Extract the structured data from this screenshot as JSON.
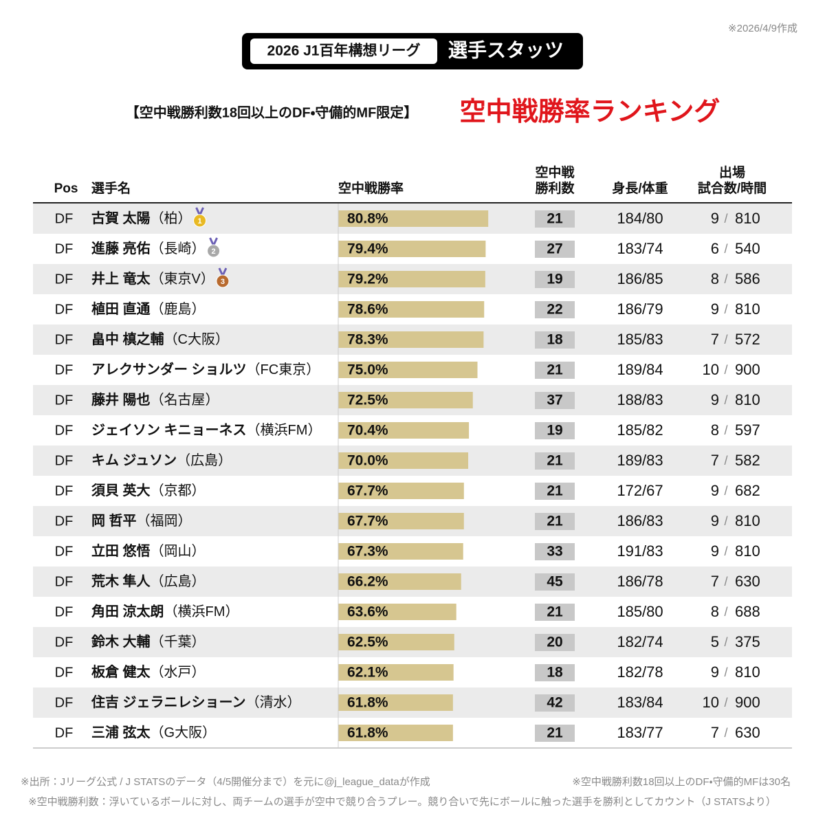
{
  "header": {
    "date_note": "※2026/4/9作成",
    "league": "2026 J1百年構想リーグ",
    "section": "選手スタッツ"
  },
  "subtitle": {
    "condition": "【空中戦勝利数18回以上のDF・守備的MF限定】",
    "title": "空中戦勝率ランキング"
  },
  "table": {
    "columns": {
      "pos": "Pos",
      "name": "選手名",
      "rate": "空中戦勝率",
      "wins": [
        "空中戦",
        "勝利数"
      ],
      "body": "身長/体重",
      "apps": [
        "出場",
        "試合数/時間"
      ]
    },
    "separator": "/",
    "rows": [
      {
        "pos": "DF",
        "name": "古賀 太陽",
        "team": "（柏）",
        "medal": "1",
        "rate": 80.8,
        "rate_label": "80.8%",
        "wins": 21,
        "body": "184/80",
        "games": 9,
        "minutes": 810
      },
      {
        "pos": "DF",
        "name": "進藤 亮佑",
        "team": "（長崎）",
        "medal": "2",
        "rate": 79.4,
        "rate_label": "79.4%",
        "wins": 27,
        "body": "183/74",
        "games": 6,
        "minutes": 540
      },
      {
        "pos": "DF",
        "name": "井上 竜太",
        "team": "（東京V）",
        "medal": "3",
        "rate": 79.2,
        "rate_label": "79.2%",
        "wins": 19,
        "body": "186/85",
        "games": 8,
        "minutes": 586
      },
      {
        "pos": "DF",
        "name": "植田 直通",
        "team": "（鹿島）",
        "rate": 78.6,
        "rate_label": "78.6%",
        "wins": 22,
        "body": "186/79",
        "games": 9,
        "minutes": 810
      },
      {
        "pos": "DF",
        "name": "畠中 槙之輔",
        "team": "（C大阪）",
        "rate": 78.3,
        "rate_label": "78.3%",
        "wins": 18,
        "body": "185/83",
        "games": 7,
        "minutes": 572
      },
      {
        "pos": "DF",
        "name": "アレクサンダー ショルツ",
        "team": "（FC東京）",
        "rate": 75.0,
        "rate_label": "75.0%",
        "wins": 21,
        "body": "189/84",
        "games": 10,
        "minutes": 900
      },
      {
        "pos": "DF",
        "name": "藤井 陽也",
        "team": "（名古屋）",
        "rate": 72.5,
        "rate_label": "72.5%",
        "wins": 37,
        "body": "188/83",
        "games": 9,
        "minutes": 810
      },
      {
        "pos": "DF",
        "name": "ジェイソン キニョーネス",
        "team": "（横浜FM）",
        "rate": 70.4,
        "rate_label": "70.4%",
        "wins": 19,
        "body": "185/82",
        "games": 8,
        "minutes": 597
      },
      {
        "pos": "DF",
        "name": "キム ジュソン",
        "team": "（広島）",
        "rate": 70.0,
        "rate_label": "70.0%",
        "wins": 21,
        "body": "189/83",
        "games": 7,
        "minutes": 582
      },
      {
        "pos": "DF",
        "name": "須貝 英大",
        "team": "（京都）",
        "rate": 67.7,
        "rate_label": "67.7%",
        "wins": 21,
        "body": "172/67",
        "games": 9,
        "minutes": 682
      },
      {
        "pos": "DF",
        "name": "岡 哲平",
        "team": "（福岡）",
        "rate": 67.7,
        "rate_label": "67.7%",
        "wins": 21,
        "body": "186/83",
        "games": 9,
        "minutes": 810
      },
      {
        "pos": "DF",
        "name": "立田 悠悟",
        "team": "（岡山）",
        "rate": 67.3,
        "rate_label": "67.3%",
        "wins": 33,
        "body": "191/83",
        "games": 9,
        "minutes": 810
      },
      {
        "pos": "DF",
        "name": "荒木 隼人",
        "team": "（広島）",
        "rate": 66.2,
        "rate_label": "66.2%",
        "wins": 45,
        "body": "186/78",
        "games": 7,
        "minutes": 630
      },
      {
        "pos": "DF",
        "name": "角田 涼太朗",
        "team": "（横浜FM）",
        "rate": 63.6,
        "rate_label": "63.6%",
        "wins": 21,
        "body": "185/80",
        "games": 8,
        "minutes": 688
      },
      {
        "pos": "DF",
        "name": "鈴木 大輔",
        "team": "（千葉）",
        "rate": 62.5,
        "rate_label": "62.5%",
        "wins": 20,
        "body": "182/74",
        "games": 5,
        "minutes": 375
      },
      {
        "pos": "DF",
        "name": "板倉 健太",
        "team": "（水戸）",
        "rate": 62.1,
        "rate_label": "62.1%",
        "wins": 18,
        "body": "182/78",
        "games": 9,
        "minutes": 810
      },
      {
        "pos": "DF",
        "name": "住吉 ジェラニレショーン",
        "team": "（清水）",
        "rate": 61.8,
        "rate_label": "61.8%",
        "wins": 42,
        "body": "183/84",
        "games": 10,
        "minutes": 900
      },
      {
        "pos": "DF",
        "name": "三浦 弦太",
        "team": "（G大阪）",
        "rate": 61.8,
        "rate_label": "61.8%",
        "wins": 21,
        "body": "183/77",
        "games": 7,
        "minutes": 630
      }
    ]
  },
  "footnotes": {
    "source": "※出所：Jリーグ公式 / J STATSのデータ（4/5開催分まで）を元に@j_league_dataが作成",
    "count": "※空中戦勝利数18回以上のDF・守備的MFは30名",
    "definition": "※空中戦勝利数：浮いているボールに対し、両チームの選手が空中で競り合うプレー。競り合いで先にボールに触った選手を勝利としてカウント（J STATSより）"
  }
}
